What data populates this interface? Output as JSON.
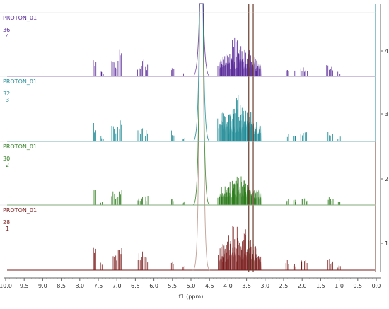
{
  "chart_data": {
    "type": "line",
    "title": "",
    "xlabel": "f1 (ppm)",
    "ylabel": "",
    "xlim": [
      10.0,
      0.0
    ],
    "x_reversed": true,
    "x_ticks": [
      "10.0",
      "9.5",
      "9.0",
      "8.5",
      "8.0",
      "7.5",
      "7.0",
      "6.5",
      "6.0",
      "5.5",
      "5.0",
      "4.5",
      "4.0",
      "3.5",
      "3.0",
      "2.5",
      "2.0",
      "1.5",
      "1.0",
      "0.5",
      "0.0"
    ],
    "y_ticks": [
      "1",
      "2",
      "3",
      "4"
    ],
    "grid": false,
    "colors": {
      "s1": "#7b1d1d",
      "s2": "#2e7d1e",
      "s3": "#1f8b96",
      "s4": "#5a2a9a",
      "water": "#b98f83",
      "vline1": "#6b3b2b",
      "vline2": "#1f8b96"
    },
    "series": [
      {
        "name": "PROTON_01",
        "lines": [
          "PROTON_01",
          "28",
          "1"
        ],
        "index": 1,
        "peaks": [
          [
            7.6,
            0.55
          ],
          [
            7.4,
            0.15
          ],
          [
            7.1,
            0.45
          ],
          [
            7.0,
            0.38
          ],
          [
            6.9,
            0.55
          ],
          [
            6.4,
            0.32
          ],
          [
            6.3,
            0.4
          ],
          [
            6.2,
            0.25
          ],
          [
            5.5,
            0.2
          ],
          [
            5.2,
            0.1
          ],
          [
            4.7,
            1.0
          ],
          [
            4.2,
            0.45
          ],
          [
            4.1,
            0.5
          ],
          [
            4.0,
            0.55
          ],
          [
            3.9,
            0.7
          ],
          [
            3.8,
            0.9
          ],
          [
            3.7,
            0.85
          ],
          [
            3.6,
            0.8
          ],
          [
            3.5,
            0.7
          ],
          [
            3.4,
            0.6
          ],
          [
            3.3,
            0.45
          ],
          [
            3.2,
            0.3
          ],
          [
            2.4,
            0.2
          ],
          [
            2.2,
            0.15
          ],
          [
            2.0,
            0.25
          ],
          [
            1.9,
            0.2
          ],
          [
            1.3,
            0.28
          ],
          [
            1.2,
            0.22
          ],
          [
            1.0,
            0.1
          ]
        ]
      },
      {
        "name": "PROTON_01",
        "lines": [
          "PROTON_01",
          "30",
          "2"
        ],
        "index": 2,
        "peaks": [
          [
            7.6,
            0.35
          ],
          [
            7.4,
            0.1
          ],
          [
            7.1,
            0.3
          ],
          [
            7.0,
            0.28
          ],
          [
            6.9,
            0.4
          ],
          [
            6.4,
            0.2
          ],
          [
            6.3,
            0.28
          ],
          [
            6.2,
            0.2
          ],
          [
            5.5,
            0.14
          ],
          [
            5.2,
            0.08
          ],
          [
            4.7,
            1.0
          ],
          [
            4.2,
            0.3
          ],
          [
            4.1,
            0.4
          ],
          [
            4.0,
            0.45
          ],
          [
            3.9,
            0.55
          ],
          [
            3.8,
            0.75
          ],
          [
            3.7,
            0.7
          ],
          [
            3.6,
            0.6
          ],
          [
            3.5,
            0.55
          ],
          [
            3.4,
            0.45
          ],
          [
            3.3,
            0.35
          ],
          [
            3.2,
            0.2
          ],
          [
            2.4,
            0.15
          ],
          [
            2.2,
            0.12
          ],
          [
            2.0,
            0.2
          ],
          [
            1.9,
            0.15
          ],
          [
            1.3,
            0.2
          ],
          [
            1.2,
            0.15
          ],
          [
            1.0,
            0.08
          ]
        ]
      },
      {
        "name": "PROTON_01",
        "lines": [
          "PROTON_01",
          "32",
          "3"
        ],
        "index": 3,
        "peaks": [
          [
            7.6,
            0.35
          ],
          [
            7.4,
            0.1
          ],
          [
            7.1,
            0.32
          ],
          [
            7.0,
            0.3
          ],
          [
            6.9,
            0.5
          ],
          [
            6.4,
            0.22
          ],
          [
            6.3,
            0.45
          ],
          [
            6.2,
            0.22
          ],
          [
            5.5,
            0.22
          ],
          [
            5.2,
            0.08
          ],
          [
            4.7,
            1.0
          ],
          [
            4.2,
            0.45
          ],
          [
            4.1,
            0.55
          ],
          [
            4.0,
            0.6
          ],
          [
            3.9,
            0.7
          ],
          [
            3.8,
            0.9
          ],
          [
            3.7,
            0.85
          ],
          [
            3.6,
            0.8
          ],
          [
            3.5,
            0.65
          ],
          [
            3.4,
            0.55
          ],
          [
            3.3,
            0.4
          ],
          [
            3.2,
            0.3
          ],
          [
            2.4,
            0.15
          ],
          [
            2.2,
            0.12
          ],
          [
            2.0,
            0.22
          ],
          [
            1.9,
            0.18
          ],
          [
            1.3,
            0.2
          ],
          [
            1.2,
            0.16
          ],
          [
            1.0,
            0.1
          ]
        ]
      },
      {
        "name": "PROTON_01",
        "lines": [
          "PROTON_01",
          "36",
          "4"
        ],
        "index": 4,
        "peaks": [
          [
            7.6,
            0.35
          ],
          [
            7.4,
            0.1
          ],
          [
            7.1,
            0.4
          ],
          [
            7.0,
            0.35
          ],
          [
            6.9,
            0.6
          ],
          [
            6.4,
            0.28
          ],
          [
            6.3,
            0.38
          ],
          [
            6.2,
            0.25
          ],
          [
            5.5,
            0.18
          ],
          [
            5.2,
            0.1
          ],
          [
            4.7,
            1.0
          ],
          [
            4.2,
            0.35
          ],
          [
            4.1,
            0.45
          ],
          [
            4.0,
            0.5
          ],
          [
            3.9,
            0.6
          ],
          [
            3.8,
            0.8
          ],
          [
            3.7,
            0.7
          ],
          [
            3.6,
            0.65
          ],
          [
            3.5,
            0.55
          ],
          [
            3.4,
            0.5
          ],
          [
            3.3,
            0.4
          ],
          [
            3.2,
            0.25
          ],
          [
            2.4,
            0.15
          ],
          [
            2.2,
            0.12
          ],
          [
            2.0,
            0.2
          ],
          [
            1.9,
            0.15
          ],
          [
            1.3,
            0.25
          ],
          [
            1.2,
            0.2
          ],
          [
            1.0,
            0.1
          ]
        ]
      }
    ]
  }
}
